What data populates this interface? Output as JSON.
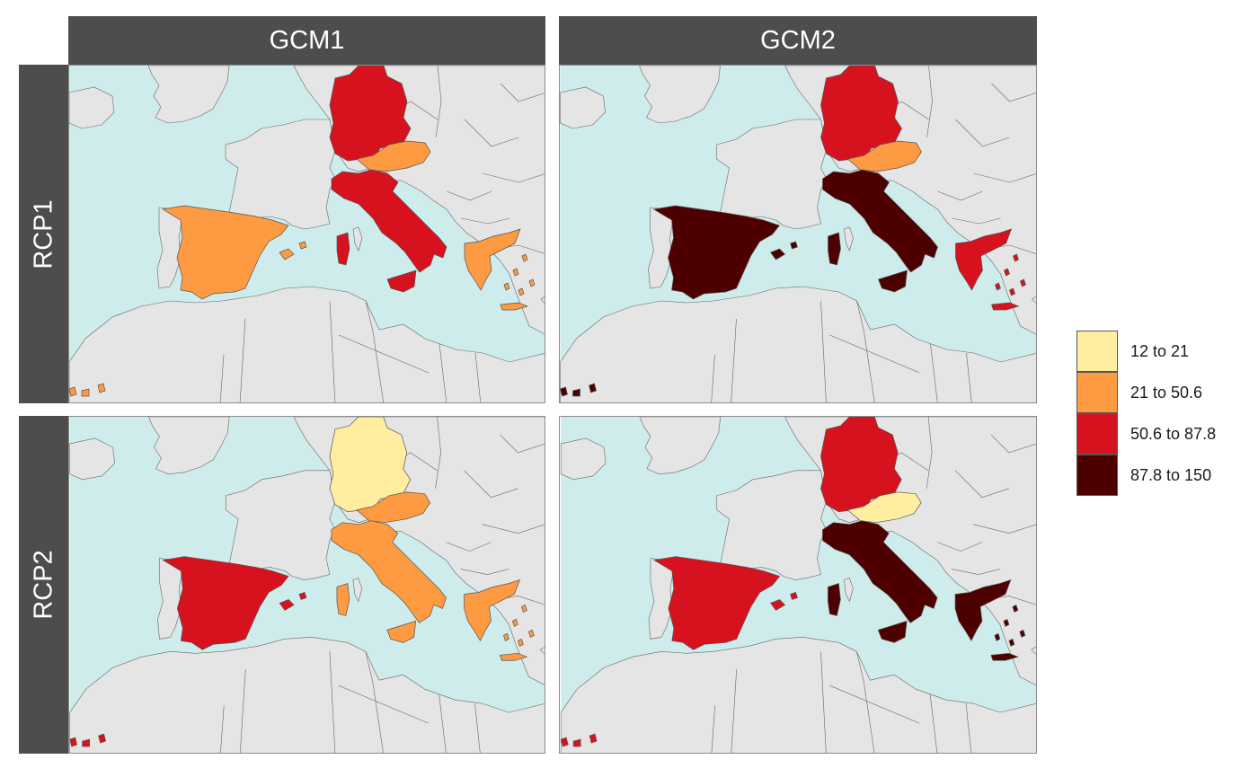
{
  "columns": [
    "GCM1",
    "GCM2"
  ],
  "rows": [
    "RCP1",
    "RCP2"
  ],
  "colors": {
    "sea": "#cfecec",
    "land": "#e5e5e5",
    "border": "#666666",
    "strip": "#4d4d4d"
  },
  "legend": {
    "items": [
      {
        "label": "12 to 21",
        "color": "#ffeda0"
      },
      {
        "label": "21 to 50.6",
        "color": "#fd9a42"
      },
      {
        "label": "50.6 to 87.8",
        "color": "#d7121f"
      },
      {
        "label": "87.8 to 150",
        "color": "#4e0000"
      }
    ]
  },
  "panels": [
    {
      "column": "GCM1",
      "row": "RCP1",
      "values": {
        "germany": 2,
        "austria": 1,
        "italy": 2,
        "spain": 1,
        "greece": 1
      }
    },
    {
      "column": "GCM2",
      "row": "RCP1",
      "values": {
        "germany": 2,
        "austria": 1,
        "italy": 3,
        "spain": 3,
        "greece": 2
      }
    },
    {
      "column": "GCM1",
      "row": "RCP2",
      "values": {
        "germany": 0,
        "austria": 1,
        "italy": 1,
        "spain": 2,
        "greece": 1
      }
    },
    {
      "column": "GCM2",
      "row": "RCP2",
      "values": {
        "germany": 2,
        "austria": 0,
        "italy": 3,
        "spain": 2,
        "greece": 3
      }
    }
  ]
}
